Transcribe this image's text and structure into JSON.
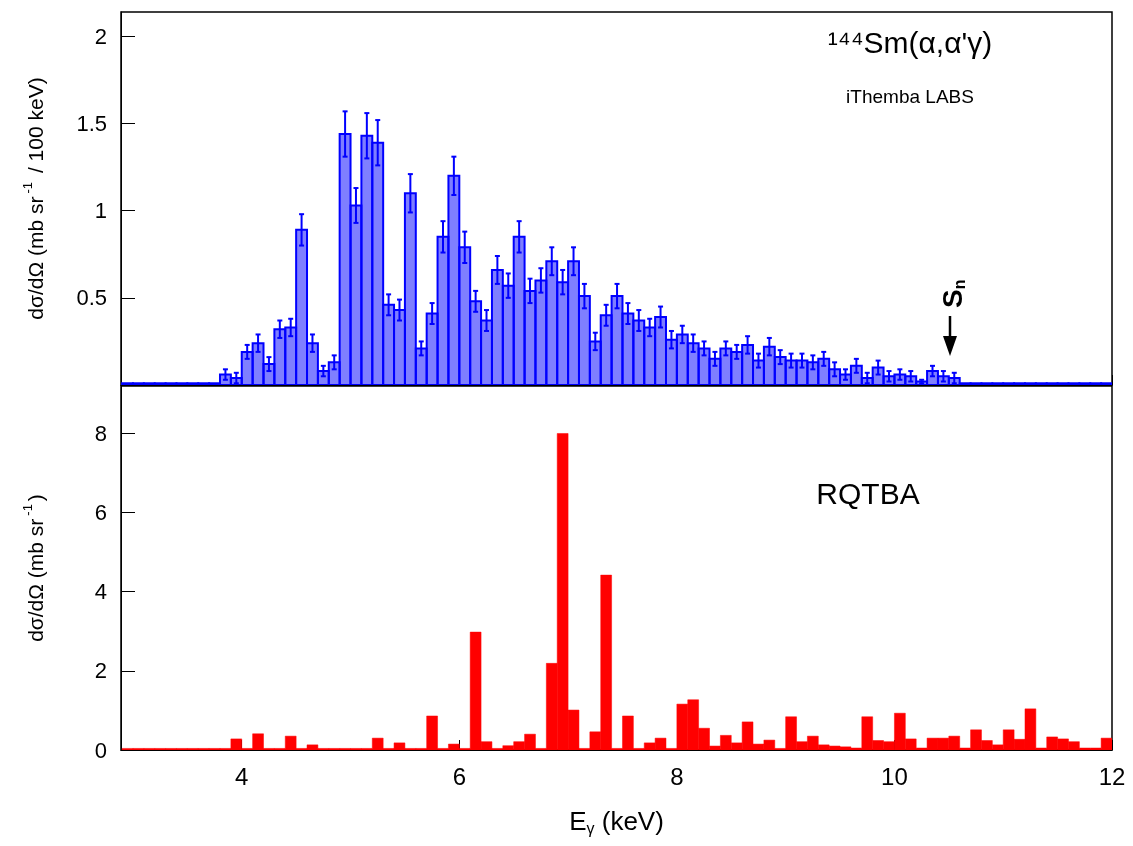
{
  "chart_data": [
    {
      "type": "histogram",
      "ylabel": "dσ/dΩ (mb sr$^{-1}$ / 100 keV)",
      "color": "#0000ff",
      "tick_labels": "y",
      "xlim": [
        2.89,
        12
      ],
      "xticks": [
        4,
        6,
        8,
        10,
        12
      ],
      "ylim": [
        0,
        2.14
      ],
      "yticks": [
        0.5,
        1,
        1.5,
        2
      ],
      "bins": [
        2.9,
        3.0,
        3.1,
        3.2,
        3.3,
        3.4,
        3.5,
        3.6,
        3.7,
        3.8,
        3.9,
        4.0,
        4.1,
        4.2,
        4.3,
        4.4,
        4.5,
        4.6,
        4.7,
        4.8,
        4.9,
        5.0,
        5.1,
        5.2,
        5.3,
        5.4,
        5.5,
        5.6,
        5.7,
        5.8,
        5.9,
        6.0,
        6.1,
        6.2,
        6.3,
        6.4,
        6.5,
        6.6,
        6.7,
        6.8,
        6.9,
        7.0,
        7.1,
        7.2,
        7.3,
        7.4,
        7.5,
        7.6,
        7.7,
        7.8,
        7.9,
        8.0,
        8.1,
        8.2,
        8.3,
        8.4,
        8.5,
        8.6,
        8.7,
        8.8,
        8.9,
        9.0,
        9.1,
        9.2,
        9.3,
        9.4,
        9.5,
        9.6,
        9.7,
        9.8,
        9.9,
        10.0,
        10.1,
        10.2,
        10.3,
        10.4,
        10.5,
        10.6,
        10.7,
        10.8,
        10.9,
        11.0,
        11.1,
        11.2,
        11.3,
        11.4,
        11.5,
        11.6,
        11.7,
        11.8,
        11.9,
        12.0
      ],
      "values": [
        0.01,
        0.01,
        0.01,
        0.01,
        0.01,
        0.01,
        0.01,
        0.01,
        0.01,
        0.06,
        0.04,
        0.19,
        0.24,
        0.12,
        0.32,
        0.33,
        0.89,
        0.24,
        0.08,
        0.13,
        1.44,
        1.03,
        1.43,
        1.39,
        0.46,
        0.43,
        1.1,
        0.21,
        0.41,
        0.85,
        1.2,
        0.79,
        0.48,
        0.37,
        0.66,
        0.57,
        0.85,
        0.54,
        0.6,
        0.71,
        0.59,
        0.71,
        0.51,
        0.25,
        0.4,
        0.51,
        0.41,
        0.37,
        0.33,
        0.39,
        0.26,
        0.29,
        0.24,
        0.21,
        0.15,
        0.21,
        0.19,
        0.23,
        0.14,
        0.22,
        0.16,
        0.14,
        0.14,
        0.13,
        0.15,
        0.09,
        0.06,
        0.11,
        0.04,
        0.1,
        0.05,
        0.06,
        0.05,
        0.02,
        0.08,
        0.05,
        0.04,
        0.01,
        0.01,
        0.01,
        0.01,
        0.01,
        0.01,
        0.01,
        0.01,
        0.01,
        0.01,
        0.01,
        0.01,
        0.01,
        0.01
      ],
      "errors": [
        null,
        null,
        null,
        null,
        null,
        null,
        null,
        null,
        null,
        0.03,
        0.03,
        0.04,
        0.05,
        0.04,
        0.05,
        0.05,
        0.09,
        0.05,
        0.03,
        0.04,
        0.13,
        0.1,
        0.13,
        0.13,
        0.06,
        0.06,
        0.11,
        0.04,
        0.06,
        0.09,
        0.11,
        0.09,
        0.06,
        0.06,
        0.08,
        0.07,
        0.09,
        0.07,
        0.07,
        0.08,
        0.07,
        0.08,
        0.07,
        0.05,
        0.06,
        0.07,
        0.06,
        0.06,
        0.05,
        0.06,
        0.05,
        0.05,
        0.05,
        0.04,
        0.04,
        0.04,
        0.04,
        0.05,
        0.04,
        0.05,
        0.04,
        0.04,
        0.04,
        0.04,
        0.04,
        0.04,
        0.03,
        0.04,
        0.03,
        0.04,
        0.03,
        0.03,
        0.03,
        0.01,
        0.03,
        0.03,
        0.03,
        null,
        null,
        null,
        null,
        null,
        null,
        null,
        null,
        null,
        null,
        null,
        null,
        null,
        null
      ],
      "annotations": [
        "¹⁴⁴Sm(α,α'γ)",
        "iThemba LABS",
        "S$_{n}$"
      ]
    },
    {
      "type": "histogram",
      "ylabel": "dσ/dΩ (mb sr$^{-1}$)",
      "xlabel": "E$_{γ}$ (keV)",
      "color": "#ff0000",
      "xlim": [
        2.89,
        12
      ],
      "xticks": [
        4,
        6,
        8,
        10,
        12
      ],
      "ylim": [
        0,
        9.2
      ],
      "yticks": [
        0,
        2,
        4,
        6,
        8
      ],
      "bins": [
        2.9,
        3.0,
        3.1,
        3.2,
        3.3,
        3.4,
        3.5,
        3.6,
        3.7,
        3.8,
        3.9,
        4.0,
        4.1,
        4.2,
        4.3,
        4.4,
        4.5,
        4.6,
        4.7,
        4.8,
        4.9,
        5.0,
        5.1,
        5.2,
        5.3,
        5.4,
        5.5,
        5.6,
        5.7,
        5.8,
        5.9,
        6.0,
        6.1,
        6.2,
        6.3,
        6.4,
        6.5,
        6.6,
        6.7,
        6.8,
        6.9,
        7.0,
        7.1,
        7.2,
        7.3,
        7.4,
        7.5,
        7.6,
        7.7,
        7.8,
        7.9,
        8.0,
        8.1,
        8.2,
        8.3,
        8.4,
        8.5,
        8.6,
        8.7,
        8.8,
        8.9,
        9.0,
        9.1,
        9.2,
        9.3,
        9.4,
        9.5,
        9.6,
        9.7,
        9.8,
        9.9,
        10.0,
        10.1,
        10.2,
        10.3,
        10.4,
        10.5,
        10.6,
        10.7,
        10.8,
        10.9,
        11.0,
        11.1,
        11.2,
        11.3,
        11.4,
        11.5,
        11.6,
        11.7,
        11.8,
        11.9,
        12.0
      ],
      "values": [
        0.04,
        0.04,
        0.04,
        0.04,
        0.04,
        0.04,
        0.04,
        0.04,
        0.04,
        0.04,
        0.28,
        0.04,
        0.41,
        0.04,
        0.04,
        0.35,
        0.04,
        0.13,
        0.04,
        0.04,
        0.04,
        0.04,
        0.04,
        0.3,
        0.04,
        0.18,
        0.04,
        0.04,
        0.86,
        0.04,
        0.15,
        0.04,
        2.98,
        0.21,
        0.04,
        0.11,
        0.21,
        0.4,
        0.04,
        2.19,
        8.0,
        1.01,
        0.04,
        0.46,
        4.42,
        0.04,
        0.86,
        0.04,
        0.18,
        0.3,
        0.04,
        1.16,
        1.27,
        0.55,
        0.1,
        0.37,
        0.18,
        0.71,
        0.15,
        0.25,
        0.04,
        0.84,
        0.21,
        0.35,
        0.13,
        0.1,
        0.08,
        0.05,
        0.84,
        0.24,
        0.21,
        0.93,
        0.28,
        0.05,
        0.3,
        0.3,
        0.35,
        0.05,
        0.51,
        0.24,
        0.13,
        0.51,
        0.27,
        1.04,
        0.05,
        0.33,
        0.28,
        0.21,
        0.05,
        0.05,
        0.3
      ],
      "annotations": [
        "RQTBA"
      ]
    }
  ]
}
